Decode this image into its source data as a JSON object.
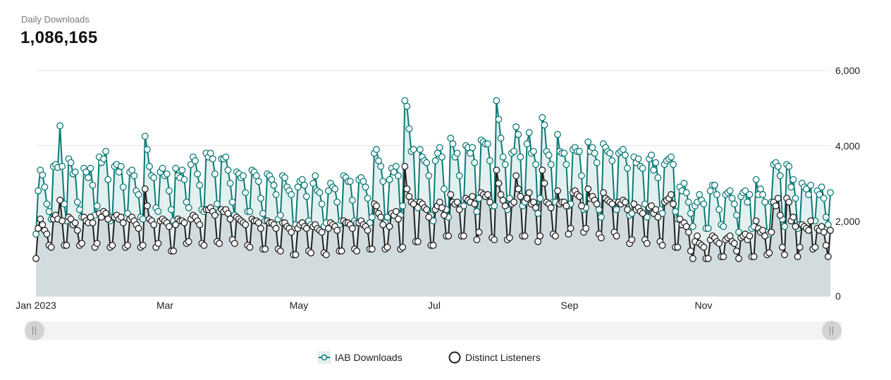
{
  "header": {
    "subtitle": "Daily Downloads",
    "total": "1,086,165"
  },
  "legend": {
    "items": [
      {
        "label": "IAB Downloads",
        "icon": "teal-circle-line-icon"
      },
      {
        "label": "Distinct Listeners",
        "icon": "black-circle-icon"
      }
    ]
  },
  "colors": {
    "iab_line": "#0b7b78",
    "iab_fill": "#e3f0ef",
    "listeners_line": "#222222",
    "listeners_fill": "#d2dbde",
    "marker_fill": "#ffffff"
  },
  "chart_data": {
    "type": "area",
    "title": "",
    "x_range": [
      "2023-01-01",
      "2023-12-31"
    ],
    "x_ticks": [
      "Jan 2023",
      "Mar",
      "May",
      "Jul",
      "Sep",
      "Nov"
    ],
    "y_ticks": [
      "6,000",
      "4,000",
      "2,000",
      "0"
    ],
    "ylim": [
      0,
      6000
    ],
    "y_axis_side": "right",
    "grid": true,
    "legend_position": "bottom",
    "series": [
      {
        "name": "IAB Downloads",
        "values": [
          1650,
          2800,
          3350,
          3220,
          2900,
          2450,
          2250,
          2050,
          3450,
          3500,
          3420,
          4530,
          3450,
          2450,
          2000,
          3650,
          3550,
          3250,
          3300,
          2500,
          2300,
          2100,
          3400,
          3300,
          3150,
          3400,
          2950,
          2150,
          2400,
          3700,
          3550,
          3650,
          3850,
          3100,
          2000,
          2100,
          3450,
          3500,
          3300,
          3450,
          2900,
          2100,
          2200,
          3300,
          3350,
          3200,
          2800,
          2700,
          2100,
          2050,
          4250,
          3900,
          3450,
          3200,
          3150,
          2350,
          2250,
          3300,
          3400,
          3200,
          3250,
          2800,
          2300,
          2000,
          3400,
          3200,
          3150,
          3350,
          3100,
          2500,
          2350,
          3500,
          3700,
          3600,
          3250,
          2950,
          2300,
          2250,
          3800,
          3700,
          3800,
          3650,
          3250,
          2450,
          2250,
          3650,
          3650,
          3700,
          3350,
          3000,
          2500,
          2150,
          3300,
          3250,
          3150,
          3200,
          2750,
          2250,
          2250,
          3350,
          3300,
          3200,
          3050,
          2600,
          2200,
          2000,
          3250,
          3200,
          3100,
          2950,
          2700,
          2050,
          2150,
          3200,
          3150,
          2900,
          2800,
          2700,
          1800,
          1900,
          2900,
          3050,
          3100,
          2950,
          2650,
          2000,
          1900,
          3000,
          3200,
          2800,
          2750,
          2450,
          1850,
          1950,
          2800,
          3000,
          2900,
          2850,
          2500,
          1900,
          2000,
          3200,
          3150,
          3050,
          3050,
          2550,
          2000,
          1950,
          3100,
          3150,
          3050,
          2900,
          2600,
          1950,
          2100,
          3800,
          3900,
          3600,
          3450,
          3050,
          1950,
          2100,
          3100,
          3400,
          3300,
          3450,
          3200,
          2150,
          2400,
          5200,
          5050,
          4450,
          3850,
          3900,
          2500,
          2350,
          3900,
          3700,
          3600,
          3550,
          3200,
          2150,
          2000,
          3600,
          3800,
          3950,
          3700,
          2850,
          2300,
          2100,
          4200,
          4050,
          3700,
          3800,
          3200,
          2400,
          2400,
          4000,
          3950,
          3800,
          3950,
          3550,
          2250,
          2600,
          4150,
          4100,
          4050,
          4050,
          3600,
          2400,
          2400,
          5200,
          4700,
          4200,
          3700,
          3500,
          2300,
          2600,
          3800,
          3850,
          4500,
          4300,
          3700,
          2400,
          2500,
          4050,
          4350,
          3800,
          3850,
          3500,
          2200,
          2600,
          4750,
          4550,
          3850,
          3750,
          3500,
          2500,
          2500,
          4300,
          3850,
          3800,
          3800,
          3500,
          2400,
          2450,
          3900,
          3950,
          3850,
          3850,
          3200,
          2300,
          2350,
          4100,
          3850,
          3950,
          3800,
          3550,
          2300,
          2100,
          4050,
          3950,
          3850,
          3800,
          3600,
          2500,
          2300,
          3800,
          3850,
          3900,
          3750,
          3400,
          2150,
          2200,
          3700,
          3550,
          3650,
          3450,
          3400,
          2450,
          2100,
          3650,
          3750,
          3350,
          3550,
          3150,
          2300,
          2200,
          3500,
          3600,
          3650,
          3700,
          3500,
          2250,
          2050,
          2900,
          2800,
          3000,
          2750,
          2500,
          2200,
          1850,
          2400,
          2500,
          2700,
          2550,
          2450,
          1800,
          1800,
          2800,
          2950,
          2950,
          2700,
          2300,
          1900,
          1850,
          2700,
          2750,
          2800,
          2600,
          2450,
          2150,
          1700,
          2650,
          2750,
          2800,
          2500,
          2700,
          1800,
          1850,
          3100,
          2700,
          2850,
          2700,
          2500,
          1700,
          1650,
          2500,
          3500,
          3550,
          3450,
          3200,
          2050,
          1850,
          3500,
          3450,
          2900,
          3100,
          2600,
          1800,
          1900,
          3000,
          2900,
          2850,
          2700,
          2950,
          2000,
          2000,
          2800,
          2700,
          2900,
          2600,
          2100,
          1900,
          2750
        ]
      },
      {
        "name": "Distinct Listeners",
        "values": [
          1000,
          1800,
          2050,
          1900,
          1750,
          1650,
          1350,
          1300,
          2050,
          2150,
          2050,
          2550,
          2000,
          1350,
          1350,
          2100,
          2050,
          1900,
          1950,
          1750,
          1350,
          1400,
          2100,
          2000,
          1950,
          2100,
          1950,
          1300,
          1400,
          2200,
          2100,
          2250,
          2200,
          2050,
          1300,
          1350,
          2100,
          2150,
          2050,
          2100,
          1950,
          1300,
          1350,
          2050,
          2100,
          2000,
          1900,
          1800,
          1300,
          1350,
          2850,
          2400,
          2050,
          2000,
          1900,
          1300,
          1400,
          2000,
          2050,
          2000,
          1950,
          1850,
          1200,
          1200,
          1900,
          2050,
          2000,
          2000,
          1950,
          1400,
          1450,
          2050,
          2150,
          2100,
          2000,
          1900,
          1400,
          1350,
          2300,
          2300,
          2350,
          2250,
          2150,
          1450,
          1400,
          2300,
          2250,
          2300,
          2200,
          2050,
          1500,
          1400,
          2100,
          2050,
          2000,
          1950,
          1900,
          1350,
          1300,
          2050,
          2000,
          2000,
          1950,
          1800,
          1250,
          1250,
          2000,
          1950,
          1950,
          1900,
          1800,
          1250,
          1200,
          1950,
          1950,
          1850,
          1800,
          1700,
          1100,
          1100,
          1800,
          1900,
          1950,
          1850,
          1800,
          1200,
          1150,
          1850,
          1900,
          1800,
          1750,
          1700,
          1150,
          1100,
          1800,
          1950,
          1900,
          1850,
          1750,
          1200,
          1200,
          2000,
          1950,
          1950,
          1900,
          1800,
          1250,
          1200,
          1950,
          2000,
          1900,
          1850,
          1750,
          1250,
          1250,
          2450,
          2400,
          2200,
          2100,
          1900,
          1250,
          1300,
          1850,
          2200,
          2150,
          2250,
          2050,
          1250,
          1300,
          3450,
          2850,
          2650,
          2500,
          2450,
          1450,
          1450,
          2500,
          2450,
          2350,
          2300,
          2100,
          1350,
          1350,
          2300,
          2400,
          2500,
          2350,
          2150,
          1600,
          1600,
          2700,
          2500,
          2450,
          2500,
          2300,
          1600,
          1600,
          2600,
          2550,
          2500,
          2650,
          2450,
          1500,
          1700,
          2750,
          2700,
          2650,
          2700,
          2500,
          1550,
          1500,
          3350,
          3000,
          2700,
          2550,
          2400,
          1500,
          1550,
          2450,
          2500,
          3200,
          2850,
          2650,
          1600,
          1600,
          2600,
          2750,
          2450,
          2500,
          2350,
          1450,
          1600,
          3350,
          3000,
          2500,
          2450,
          2350,
          1650,
          1600,
          2800,
          2450,
          2500,
          2500,
          2400,
          1650,
          1800,
          2750,
          2800,
          2700,
          2650,
          2400,
          1700,
          1800,
          2850,
          2600,
          2650,
          2550,
          2450,
          1650,
          1550,
          2750,
          2600,
          2550,
          2500,
          2450,
          1700,
          1600,
          2500,
          2450,
          2550,
          2500,
          2300,
          1400,
          1500,
          2450,
          2300,
          2350,
          2250,
          2200,
          1500,
          1400,
          2350,
          2400,
          2200,
          2300,
          2100,
          1450,
          1350,
          2500,
          2550,
          2600,
          2700,
          2450,
          1300,
          1300,
          2050,
          1900,
          1950,
          1850,
          1700,
          1200,
          1000,
          1450,
          1600,
          1400,
          1350,
          1300,
          1000,
          1000,
          1500,
          1600,
          1550,
          1450,
          1400,
          1050,
          1050,
          1500,
          1550,
          1600,
          1450,
          1400,
          1200,
          1000,
          1550,
          1600,
          1650,
          1500,
          1600,
          1050,
          1050,
          2000,
          1800,
          1700,
          1750,
          1600,
          1100,
          1150,
          1700,
          2500,
          2400,
          2600,
          2150,
          1300,
          1100,
          2600,
          2500,
          2000,
          2100,
          1850,
          1050,
          1300,
          1900,
          1850,
          1800,
          1750,
          2000,
          1250,
          1300,
          1800,
          1750,
          1850,
          1700,
          1350,
          1050,
          1750
        ]
      }
    ]
  }
}
